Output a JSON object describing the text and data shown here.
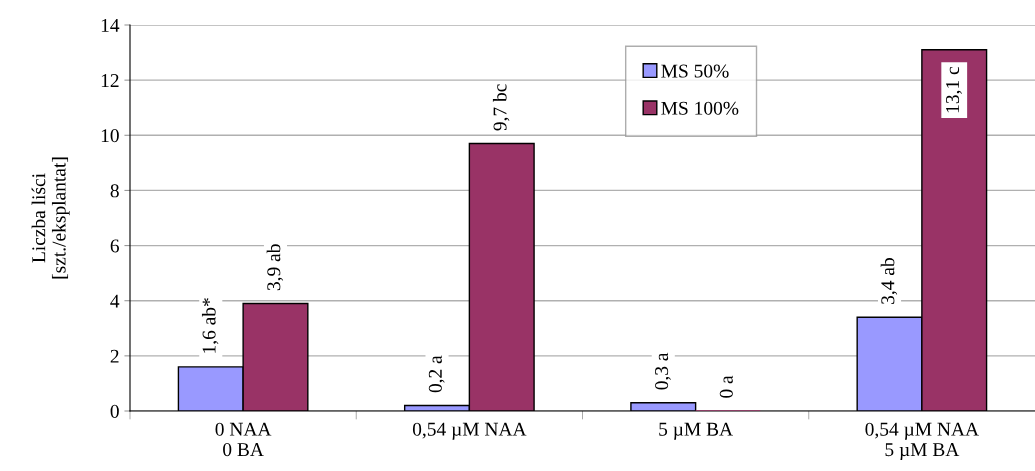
{
  "chart_data": {
    "type": "bar",
    "ylabel": "Liczba liści\n[szt./eksplantat]",
    "categories": [
      "0 NAA\n0 BA",
      "0,54 µM NAA",
      "5 µM BA",
      "0,54 µM NAA\n5 µM BA"
    ],
    "series": [
      {
        "name": "MS 50%",
        "color": "#9999ff",
        "values": [
          1.6,
          0.2,
          0.3,
          3.4
        ],
        "value_labels": [
          "1,6 ab*",
          "0,2 a",
          "0,3 a",
          "3,4 ab"
        ]
      },
      {
        "name": "MS 100%",
        "color": "#993366",
        "values": [
          3.9,
          9.7,
          0,
          13.1
        ],
        "value_labels": [
          "3,9 ab",
          "9,7 bc",
          "0 a",
          "13,1 c"
        ]
      }
    ],
    "ylim": [
      0,
      14
    ],
    "yticks": [
      0,
      2,
      4,
      6,
      8,
      10,
      12,
      14
    ],
    "grid": "y",
    "legend": "top"
  }
}
